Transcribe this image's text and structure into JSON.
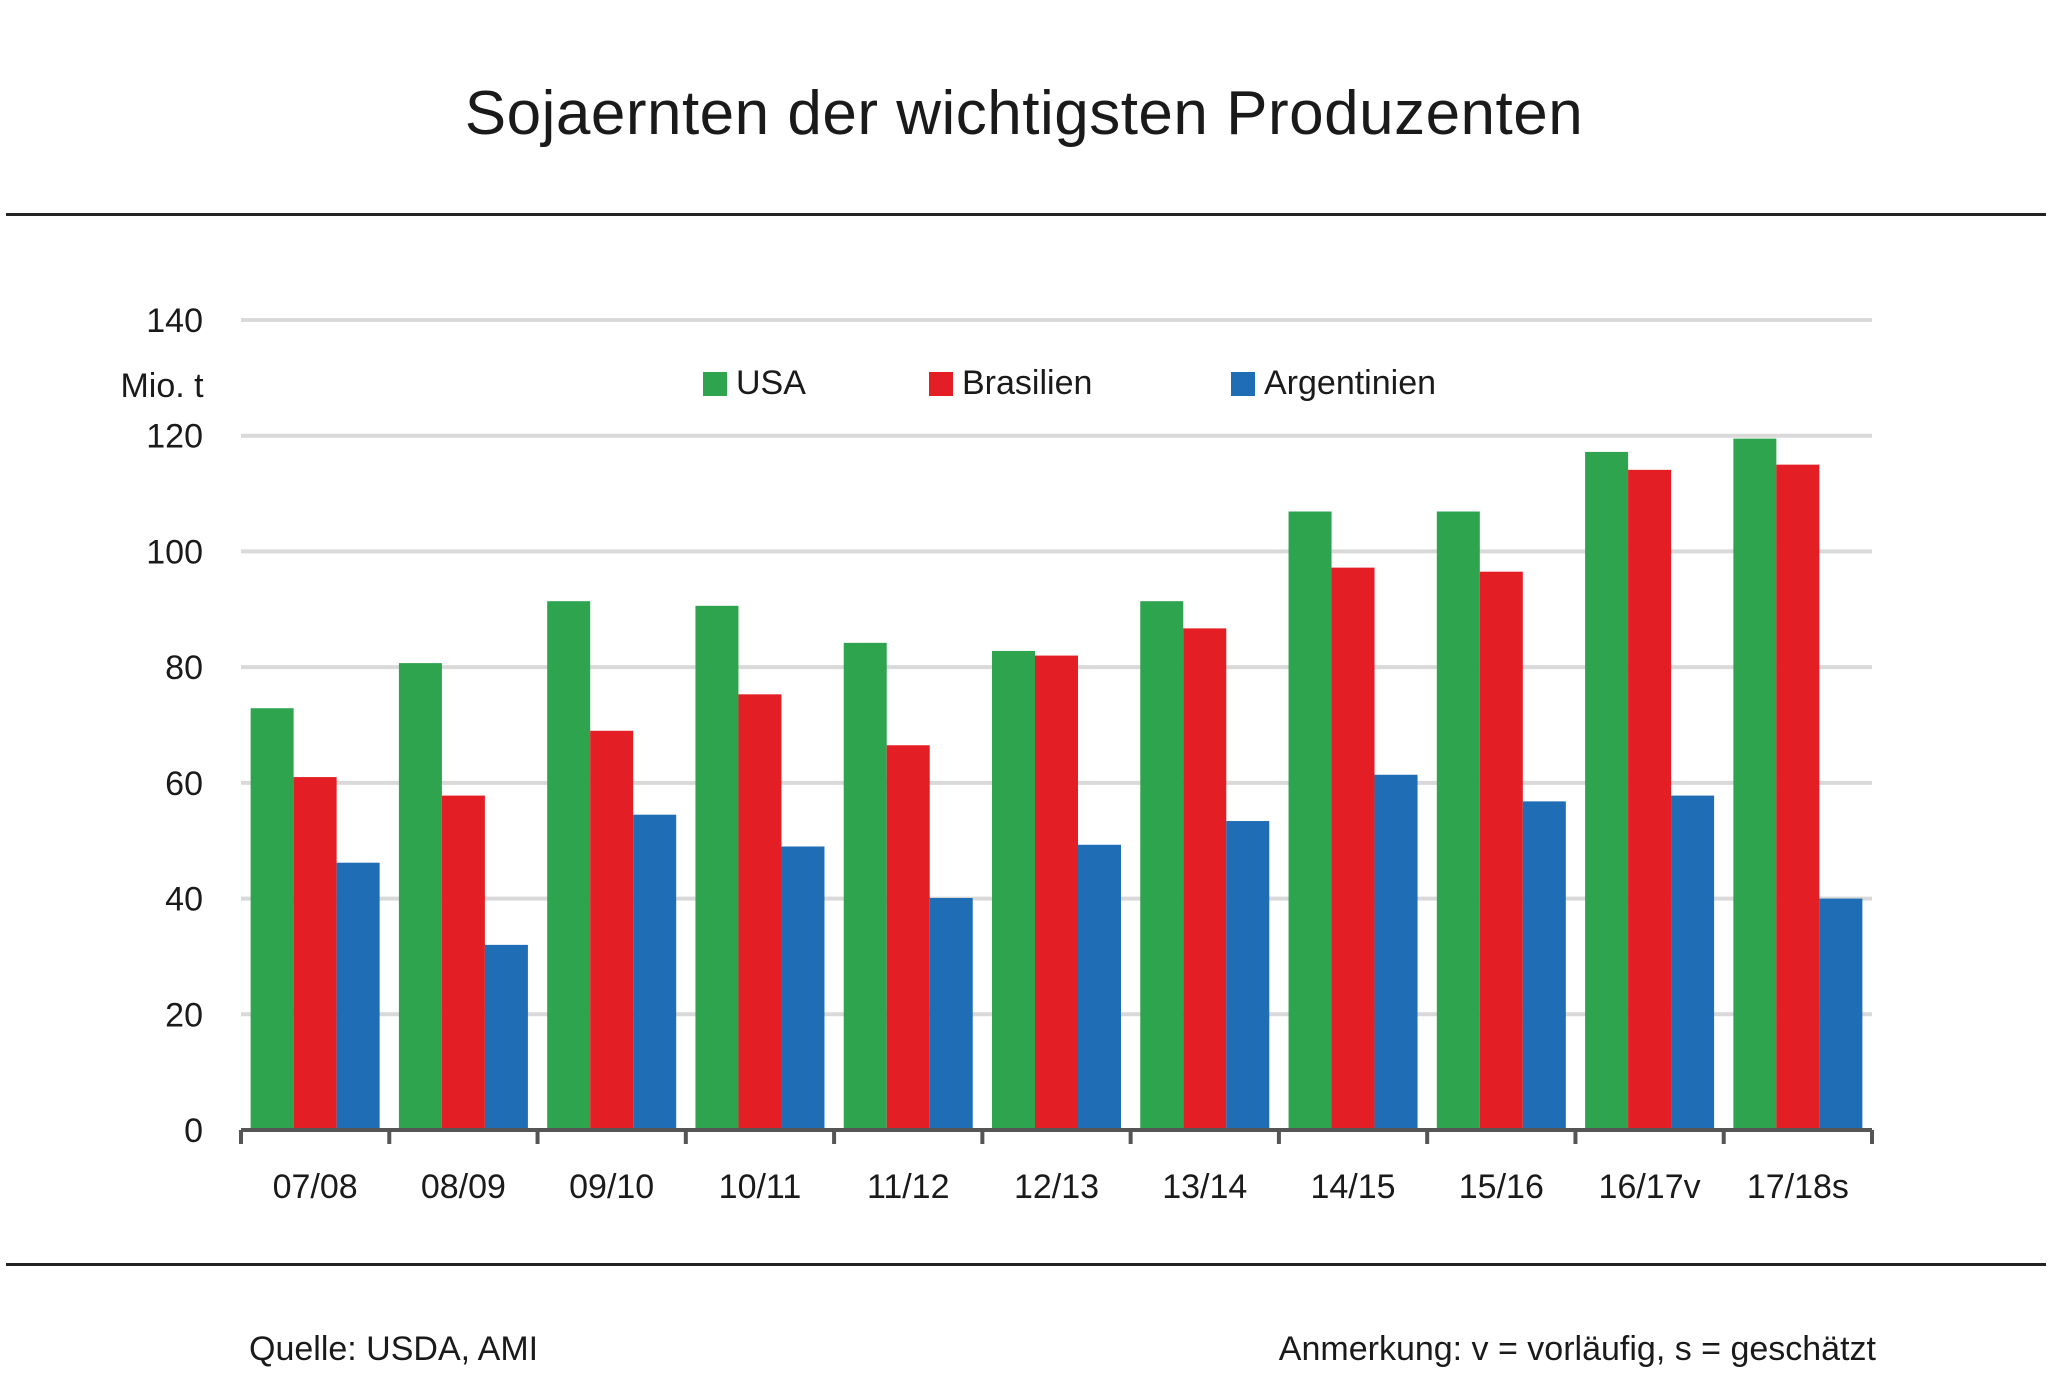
{
  "title": "Sojaernten der wichtigsten Produzenten",
  "source": "Quelle: USDA, AMI",
  "note": "Anmerkung: v = vorläufig, s = geschätzt",
  "colors": {
    "USA": "#2ea44f",
    "Brasilien": "#e31e24",
    "Argentinien": "#1f6db5",
    "grid": "#d9d9d9",
    "axis": "#555555"
  },
  "chart_data": {
    "type": "bar",
    "title": "Sojaernten der wichtigsten Produzenten",
    "ylabel": "Mio. t",
    "xlabel": "",
    "ylim": [
      0,
      140
    ],
    "yticks": [
      0,
      20,
      40,
      60,
      80,
      100,
      120,
      140
    ],
    "grid": true,
    "legend_position": "top",
    "categories": [
      "07/08",
      "08/09",
      "09/10",
      "10/11",
      "11/12",
      "12/13",
      "13/14",
      "14/15",
      "15/16",
      "16/17v",
      "17/18s"
    ],
    "series": [
      {
        "name": "USA",
        "values": [
          72.9,
          80.7,
          91.4,
          90.6,
          84.2,
          82.8,
          91.4,
          106.9,
          106.9,
          117.2,
          119.5
        ]
      },
      {
        "name": "Brasilien",
        "values": [
          61.0,
          57.8,
          69.0,
          75.3,
          66.5,
          82.0,
          86.7,
          97.2,
          96.5,
          114.1,
          115.0
        ]
      },
      {
        "name": "Argentinien",
        "values": [
          46.2,
          32.0,
          54.5,
          49.0,
          40.1,
          49.3,
          53.4,
          61.4,
          56.8,
          57.8,
          40.0
        ]
      }
    ]
  }
}
